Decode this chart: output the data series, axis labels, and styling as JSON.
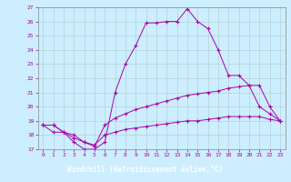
{
  "xlabel": "Windchill (Refroidissement éolien,°C)",
  "background_color": "#cceeff",
  "plot_bg_color": "#cceeff",
  "xlabel_bg": "#6600aa",
  "line_color": "#aa00aa",
  "grid_color": "#aacccc",
  "xlim": [
    -0.5,
    23.5
  ],
  "ylim": [
    17,
    27
  ],
  "yticks": [
    17,
    18,
    19,
    20,
    21,
    22,
    23,
    24,
    25,
    26,
    27
  ],
  "xticks": [
    0,
    1,
    2,
    3,
    4,
    5,
    6,
    7,
    8,
    9,
    10,
    11,
    12,
    13,
    14,
    15,
    16,
    17,
    18,
    19,
    20,
    21,
    22,
    23
  ],
  "line1_x": [
    0,
    1,
    2,
    3,
    4,
    5,
    6,
    7,
    8,
    9,
    10,
    11,
    12,
    13,
    14,
    15,
    16,
    17,
    18,
    19,
    20,
    21,
    22,
    23
  ],
  "line1_y": [
    18.7,
    18.7,
    18.2,
    17.5,
    17.0,
    17.0,
    17.5,
    21.0,
    23.0,
    24.3,
    25.9,
    25.9,
    26.0,
    26.0,
    26.9,
    26.0,
    25.5,
    24.0,
    22.2,
    22.2,
    21.5,
    20.0,
    19.5,
    19.0
  ],
  "line2_x": [
    0,
    1,
    2,
    3,
    4,
    5,
    6,
    7,
    8,
    9,
    10,
    11,
    12,
    13,
    14,
    15,
    16,
    17,
    18,
    19,
    20,
    21,
    22,
    23
  ],
  "line2_y": [
    18.7,
    18.7,
    18.2,
    18.0,
    17.5,
    17.2,
    18.7,
    19.2,
    19.5,
    19.8,
    20.0,
    20.2,
    20.4,
    20.6,
    20.8,
    20.9,
    21.0,
    21.1,
    21.3,
    21.4,
    21.5,
    21.5,
    20.0,
    19.0
  ],
  "line3_x": [
    0,
    1,
    2,
    3,
    4,
    5,
    6,
    7,
    8,
    9,
    10,
    11,
    12,
    13,
    14,
    15,
    16,
    17,
    18,
    19,
    20,
    21,
    22,
    23
  ],
  "line3_y": [
    18.7,
    18.2,
    18.2,
    17.8,
    17.5,
    17.3,
    18.0,
    18.2,
    18.4,
    18.5,
    18.6,
    18.7,
    18.8,
    18.9,
    19.0,
    19.0,
    19.1,
    19.2,
    19.3,
    19.3,
    19.3,
    19.3,
    19.1,
    19.0
  ]
}
